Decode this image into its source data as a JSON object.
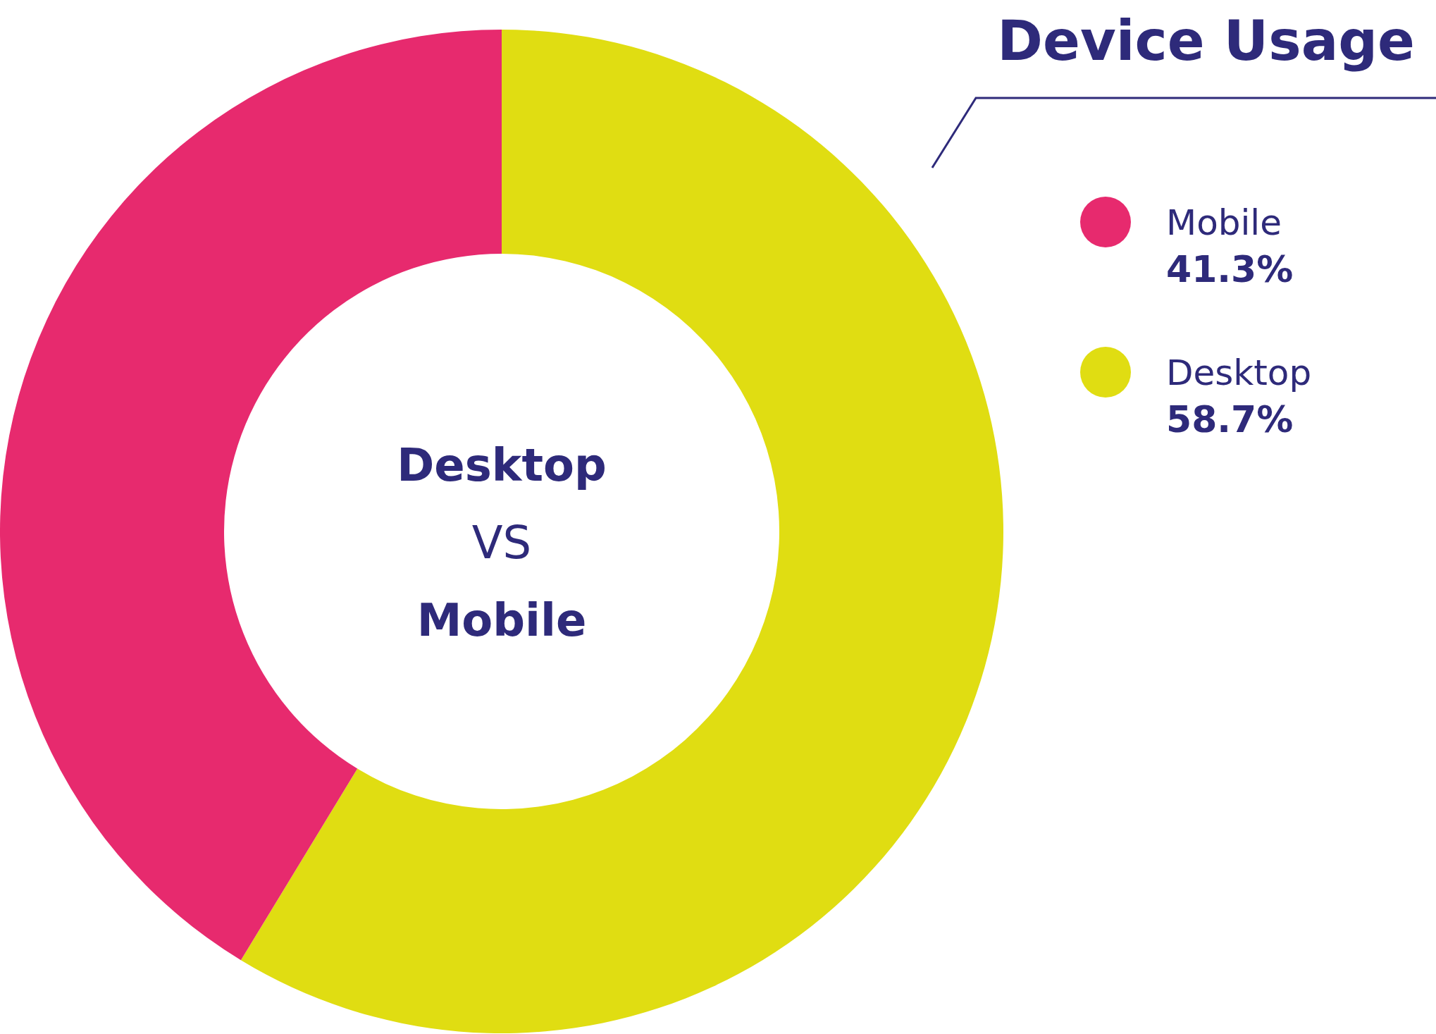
{
  "chart_data": {
    "type": "donut",
    "title": "Device Usage",
    "categories": [
      "Mobile",
      "Desktop"
    ],
    "values": [
      41.3,
      58.7
    ],
    "colors": [
      "#e72a6e",
      "#e0dd12"
    ],
    "annotations": [
      "Desktop",
      "VS",
      "Mobile"
    ],
    "value_labels": [
      "41.3%",
      "58.7%"
    ],
    "legend": "right"
  }
}
